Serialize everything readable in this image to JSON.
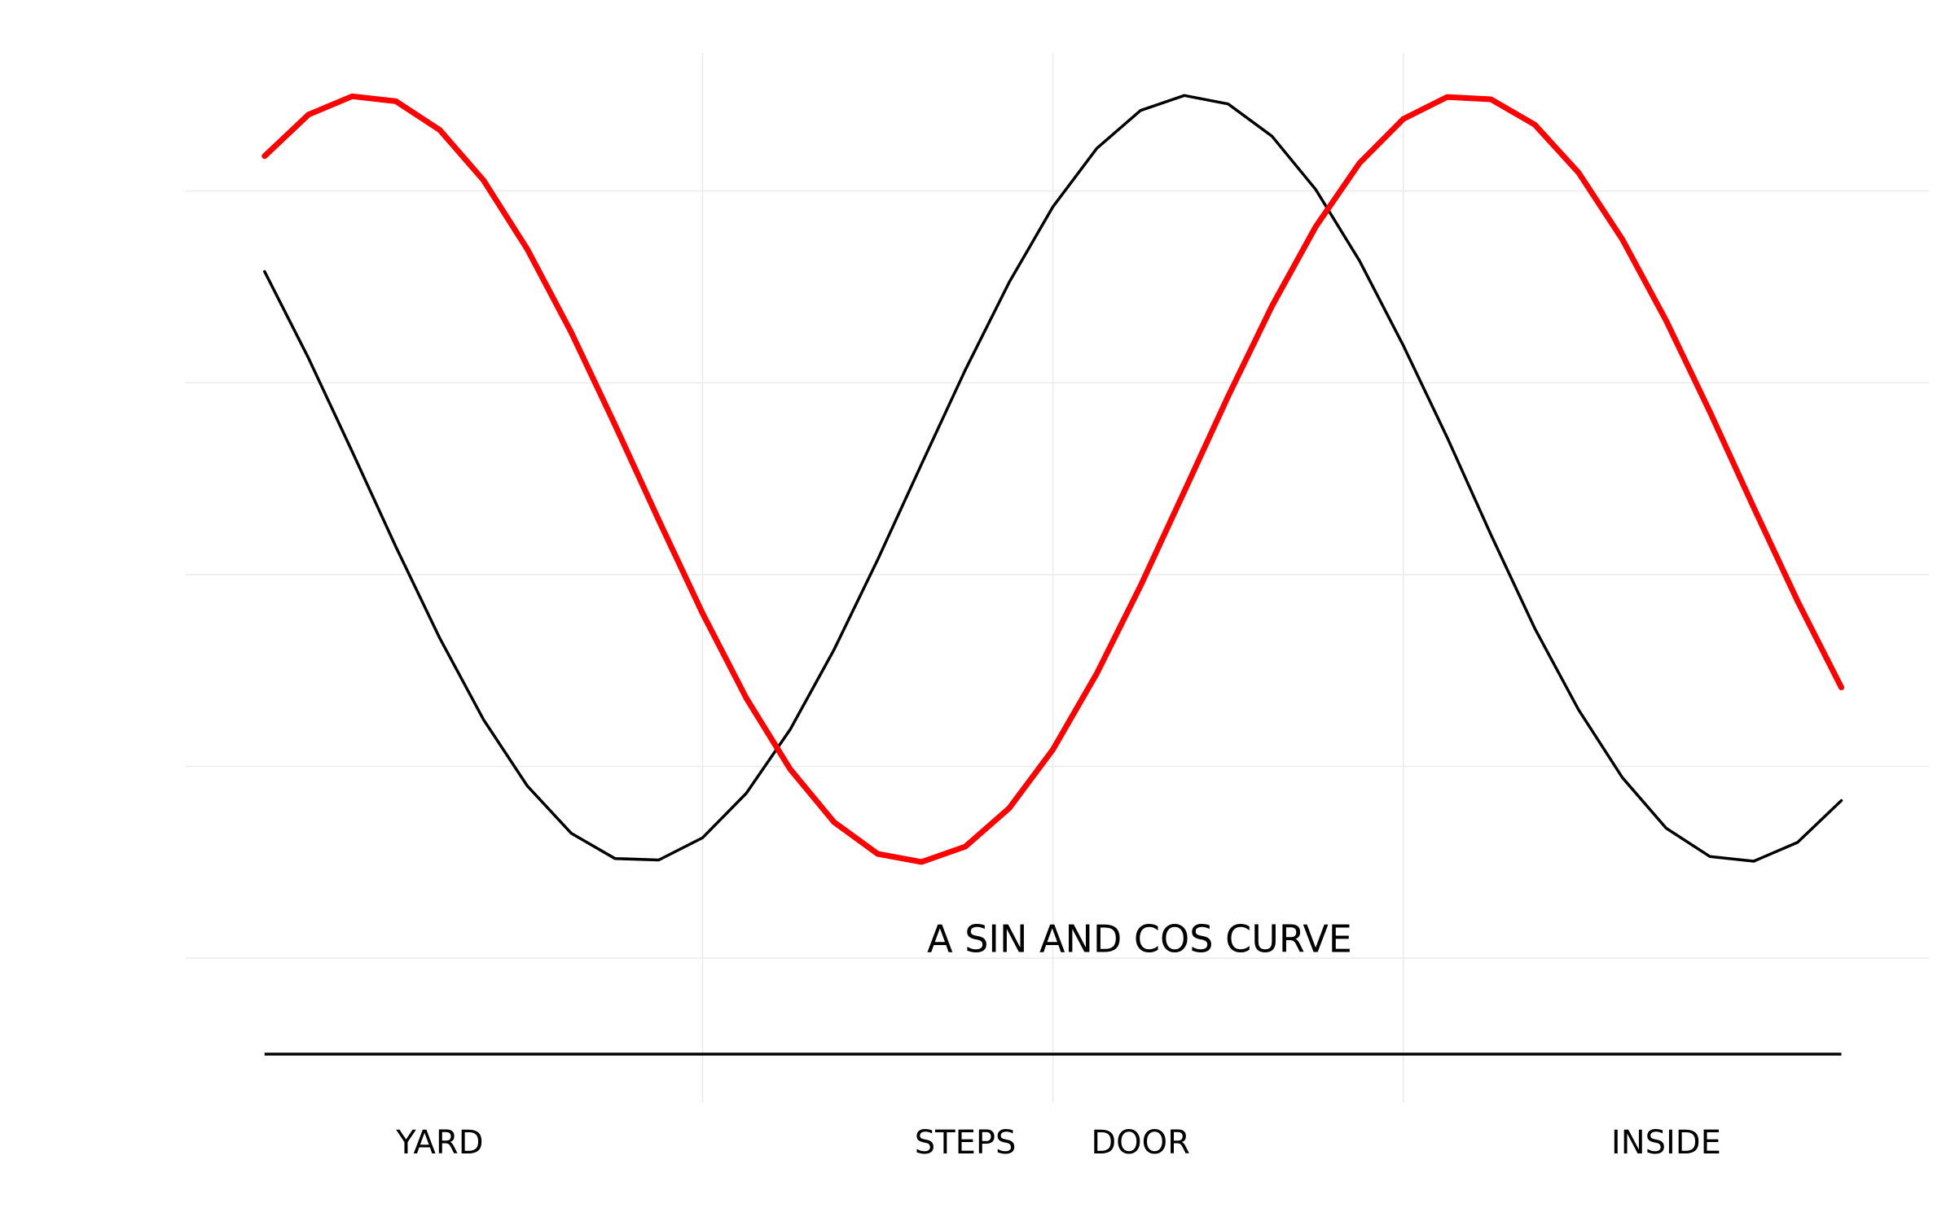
{
  "chart_data": {
    "type": "line",
    "annotation": "A SIN AND COS CURVE",
    "x": [
      1,
      1.25,
      1.5,
      1.75,
      2,
      2.25,
      2.5,
      2.75,
      3,
      3.25,
      3.5,
      3.75,
      4,
      4.25,
      4.5,
      4.75,
      5,
      5.25,
      5.5,
      5.75,
      6,
      6.25,
      6.5,
      6.75,
      7,
      7.25,
      7.5,
      7.75,
      8,
      8.25,
      8.5,
      8.75,
      9,
      9.25,
      9.5,
      9.75,
      10
    ],
    "series": [
      {
        "color": "#000000",
        "width": 3.5,
        "values": [
          0.54,
          0.315,
          0.071,
          -0.178,
          -0.416,
          -0.628,
          -0.801,
          -0.924,
          -0.99,
          -0.994,
          -0.936,
          -0.82,
          -0.654,
          -0.446,
          -0.211,
          0.038,
          0.284,
          0.512,
          0.709,
          0.861,
          0.96,
          0.999,
          0.977,
          0.893,
          0.754,
          0.568,
          0.347,
          0.108,
          -0.146,
          -0.39,
          -0.602,
          -0.779,
          -0.911,
          -0.985,
          -0.997,
          -0.948,
          -0.839
        ]
      },
      {
        "color": "#ff0000",
        "width": 7,
        "values": [
          0.841,
          0.949,
          0.997,
          0.984,
          0.909,
          0.778,
          0.598,
          0.382,
          0.141,
          -0.108,
          -0.351,
          -0.572,
          -0.757,
          -0.895,
          -0.978,
          -0.999,
          -0.959,
          -0.859,
          -0.706,
          -0.508,
          -0.279,
          -0.033,
          0.215,
          0.45,
          0.657,
          0.823,
          0.938,
          0.995,
          0.989,
          0.923,
          0.798,
          0.624,
          0.412,
          0.174,
          -0.075,
          -0.319,
          -0.544
        ]
      }
    ],
    "xlim": [
      0.55,
      10.5
    ],
    "ylim": [
      -1.5,
      1.11
    ],
    "xticks": [
      {
        "value": 2,
        "label": "YARD"
      },
      {
        "value": 5,
        "label": "STEPS"
      },
      {
        "value": 6,
        "label": "DOOR"
      },
      {
        "value": 9,
        "label": "INSIDE"
      }
    ],
    "xgrid": [
      3.5,
      5.5,
      7.5
    ],
    "ygrid": [
      0.75,
      0.25,
      -0.25,
      -0.75,
      -1.25
    ]
  }
}
